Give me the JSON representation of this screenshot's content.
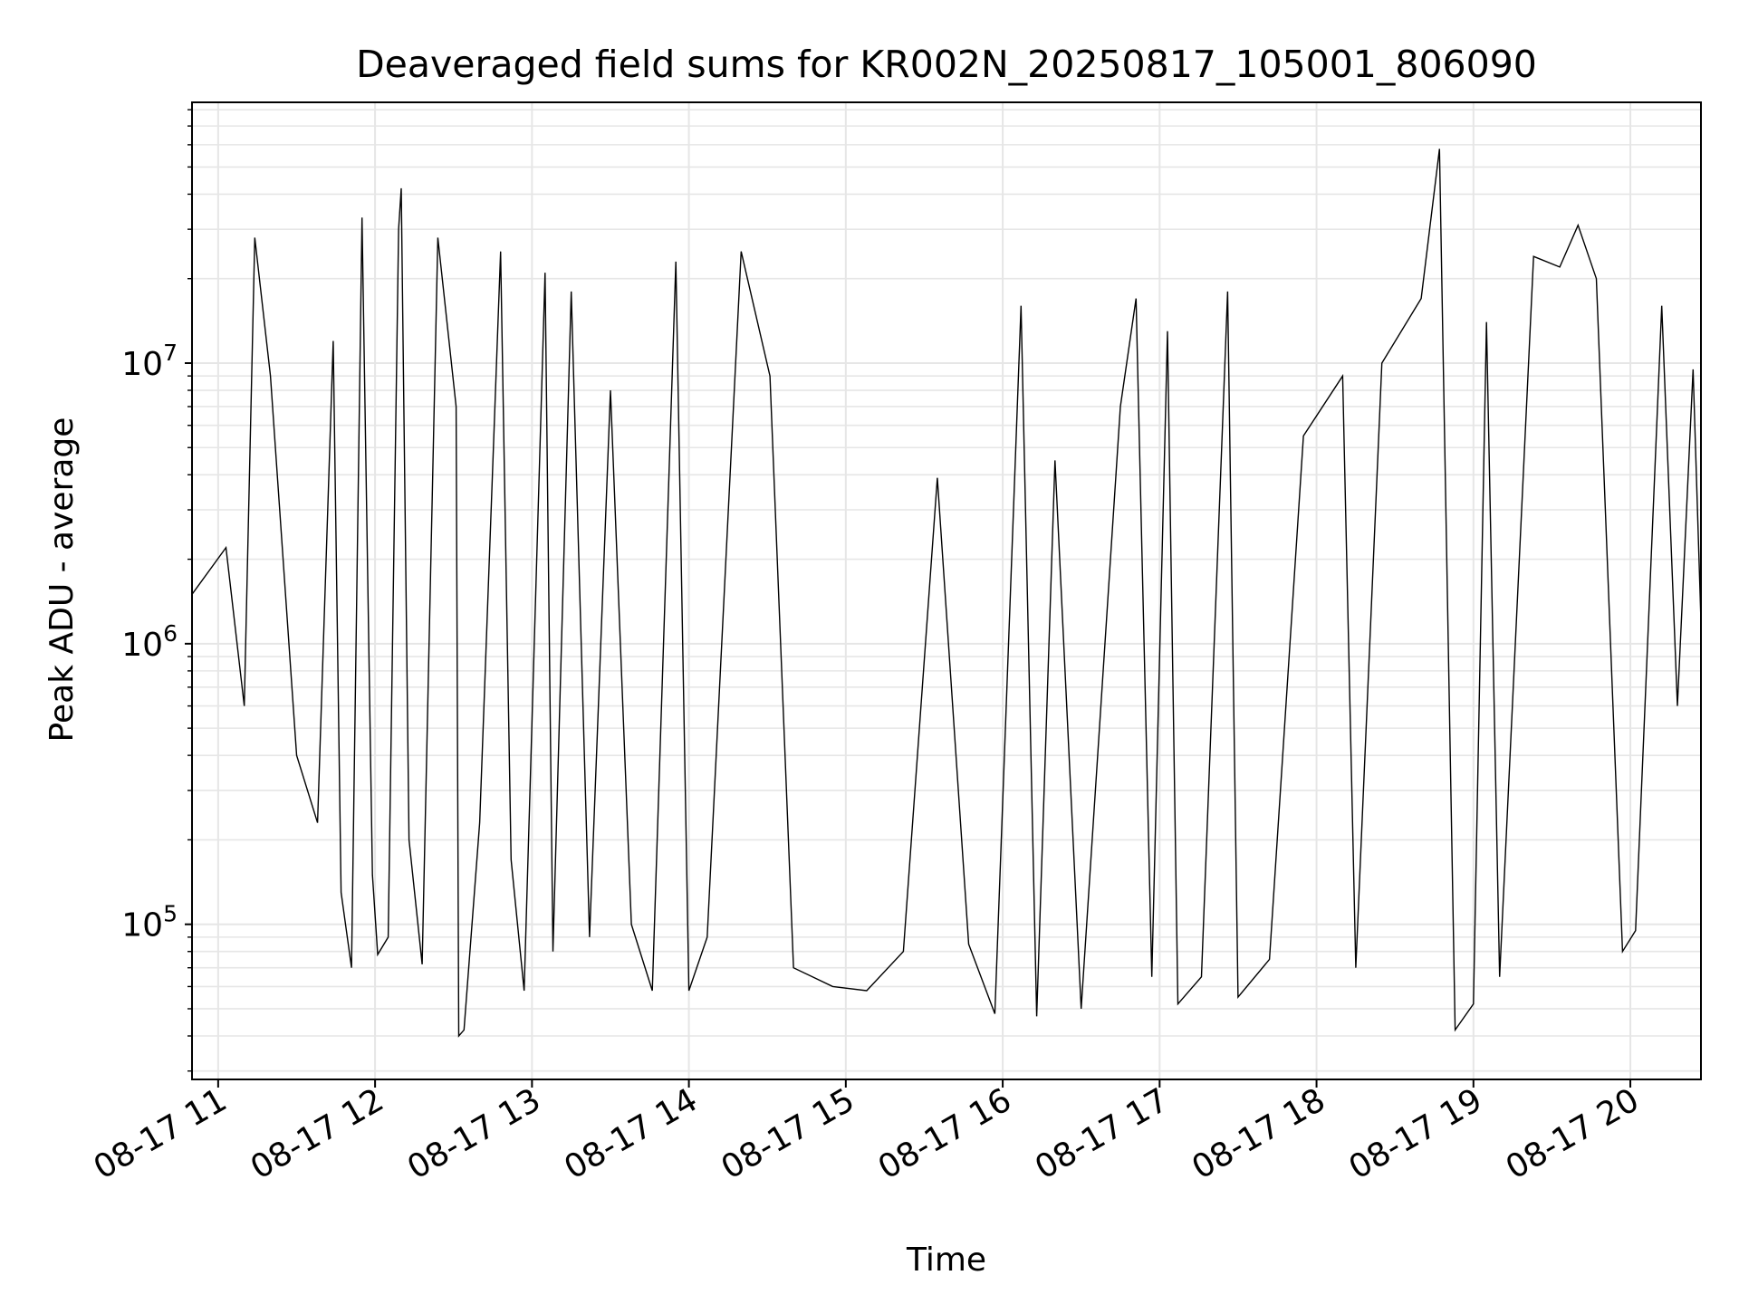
{
  "chart_data": {
    "type": "line",
    "title": "Deaveraged field sums for KR002N_20250817_105001_806090",
    "xlabel": "Time",
    "ylabel": "Peak ADU - average",
    "yscale": "log",
    "ylim": [
      28000,
      85000000
    ],
    "xlim": [
      "2025-08-17 10:50",
      "2025-08-17 20:27"
    ],
    "grid": true,
    "line_color": "#000000",
    "grid_color": "#e6e6e6",
    "x_ticks": [
      {
        "t": "2025-08-17 11:00",
        "label": "08-17 11"
      },
      {
        "t": "2025-08-17 12:00",
        "label": "08-17 12"
      },
      {
        "t": "2025-08-17 13:00",
        "label": "08-17 13"
      },
      {
        "t": "2025-08-17 14:00",
        "label": "08-17 14"
      },
      {
        "t": "2025-08-17 15:00",
        "label": "08-17 15"
      },
      {
        "t": "2025-08-17 16:00",
        "label": "08-17 16"
      },
      {
        "t": "2025-08-17 17:00",
        "label": "08-17 17"
      },
      {
        "t": "2025-08-17 18:00",
        "label": "08-17 18"
      },
      {
        "t": "2025-08-17 19:00",
        "label": "08-17 19"
      },
      {
        "t": "2025-08-17 20:00",
        "label": "08-17 20"
      }
    ],
    "y_ticks": [
      {
        "value": 100000,
        "base": "10",
        "exp": "5"
      },
      {
        "value": 1000000,
        "base": "10",
        "exp": "6"
      },
      {
        "value": 10000000,
        "base": "10",
        "exp": "7"
      }
    ],
    "series": [
      {
        "values": [
          [
            "2025-08-17 10:50",
            1500000
          ],
          [
            "2025-08-17 11:03",
            2200000
          ],
          [
            "2025-08-17 11:10",
            600000
          ],
          [
            "2025-08-17 11:14",
            28000000
          ],
          [
            "2025-08-17 11:20",
            9000000
          ],
          [
            "2025-08-17 11:30",
            400000
          ],
          [
            "2025-08-17 11:38",
            230000
          ],
          [
            "2025-08-17 11:44",
            12000000
          ],
          [
            "2025-08-17 11:47",
            130000
          ],
          [
            "2025-08-17 11:51",
            70000
          ],
          [
            "2025-08-17 11:55",
            33000000
          ],
          [
            "2025-08-17 11:59",
            150000
          ],
          [
            "2025-08-17 12:01",
            78000
          ],
          [
            "2025-08-17 12:05",
            90000
          ],
          [
            "2025-08-17 12:09",
            30000000
          ],
          [
            "2025-08-17 12:10",
            42000000
          ],
          [
            "2025-08-17 12:13",
            200000
          ],
          [
            "2025-08-17 12:18",
            72000
          ],
          [
            "2025-08-17 12:24",
            28000000
          ],
          [
            "2025-08-17 12:31",
            7000000
          ],
          [
            "2025-08-17 12:32",
            40000
          ],
          [
            "2025-08-17 12:34",
            42000
          ],
          [
            "2025-08-17 12:40",
            230000
          ],
          [
            "2025-08-17 12:48",
            25000000
          ],
          [
            "2025-08-17 12:52",
            170000
          ],
          [
            "2025-08-17 12:57",
            58000
          ],
          [
            "2025-08-17 13:05",
            21000000
          ],
          [
            "2025-08-17 13:08",
            80000
          ],
          [
            "2025-08-17 13:15",
            18000000
          ],
          [
            "2025-08-17 13:22",
            90000
          ],
          [
            "2025-08-17 13:30",
            8000000
          ],
          [
            "2025-08-17 13:38",
            100000
          ],
          [
            "2025-08-17 13:46",
            58000
          ],
          [
            "2025-08-17 13:55",
            23000000
          ],
          [
            "2025-08-17 14:00",
            58000
          ],
          [
            "2025-08-17 14:07",
            90000
          ],
          [
            "2025-08-17 14:20",
            25000000
          ],
          [
            "2025-08-17 14:31",
            9000000
          ],
          [
            "2025-08-17 14:40",
            70000
          ],
          [
            "2025-08-17 14:55",
            60000
          ],
          [
            "2025-08-17 15:08",
            58000
          ],
          [
            "2025-08-17 15:22",
            80000
          ],
          [
            "2025-08-17 15:35",
            3900000
          ],
          [
            "2025-08-17 15:47",
            85000
          ],
          [
            "2025-08-17 15:57",
            48000
          ],
          [
            "2025-08-17 16:07",
            16000000
          ],
          [
            "2025-08-17 16:13",
            47000
          ],
          [
            "2025-08-17 16:20",
            4500000
          ],
          [
            "2025-08-17 16:30",
            50000
          ],
          [
            "2025-08-17 16:45",
            7000000
          ],
          [
            "2025-08-17 16:51",
            17000000
          ],
          [
            "2025-08-17 16:57",
            65000
          ],
          [
            "2025-08-17 17:03",
            13000000
          ],
          [
            "2025-08-17 17:07",
            52000
          ],
          [
            "2025-08-17 17:16",
            65000
          ],
          [
            "2025-08-17 17:26",
            18000000
          ],
          [
            "2025-08-17 17:30",
            55000
          ],
          [
            "2025-08-17 17:42",
            75000
          ],
          [
            "2025-08-17 17:55",
            5500000
          ],
          [
            "2025-08-17 18:10",
            9000000
          ],
          [
            "2025-08-17 18:15",
            70000
          ],
          [
            "2025-08-17 18:25",
            10000000
          ],
          [
            "2025-08-17 18:40",
            17000000
          ],
          [
            "2025-08-17 18:47",
            58000000
          ],
          [
            "2025-08-17 18:53",
            42000
          ],
          [
            "2025-08-17 19:00",
            52000
          ],
          [
            "2025-08-17 19:05",
            14000000
          ],
          [
            "2025-08-17 19:10",
            65000
          ],
          [
            "2025-08-17 19:23",
            24000000
          ],
          [
            "2025-08-17 19:33",
            22000000
          ],
          [
            "2025-08-17 19:40",
            31000000
          ],
          [
            "2025-08-17 19:47",
            20000000
          ],
          [
            "2025-08-17 19:57",
            80000
          ],
          [
            "2025-08-17 20:02",
            95000
          ],
          [
            "2025-08-17 20:12",
            16000000
          ],
          [
            "2025-08-17 20:18",
            600000
          ],
          [
            "2025-08-17 20:24",
            9500000
          ],
          [
            "2025-08-17 20:27",
            1200000
          ]
        ]
      }
    ]
  }
}
